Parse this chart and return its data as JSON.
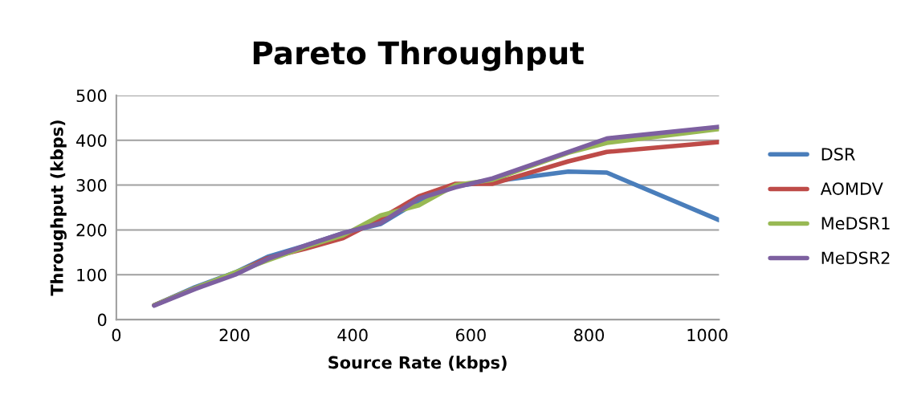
{
  "chart_data": {
    "type": "line",
    "title": "Pareto Throughput",
    "xlabel": "Source Rate (kbps)",
    "ylabel": "Throughput (kbps)",
    "x": [
      64,
      133,
      201,
      256,
      320,
      384,
      447,
      512,
      574,
      637,
      765,
      830,
      1020
    ],
    "series": [
      {
        "name": "DSR",
        "color": "#4a7ebb",
        "values": [
          32,
          72,
          105,
          140,
          165,
          193,
          213,
          265,
          298,
          308,
          330,
          328,
          222
        ]
      },
      {
        "name": "AOMDV",
        "color": "#be4b48",
        "values": [
          32,
          70,
          103,
          137,
          158,
          182,
          225,
          275,
          303,
          303,
          353,
          374,
          396
        ]
      },
      {
        "name": "MeDSR1",
        "color": "#98b954",
        "values": [
          32,
          70,
          105,
          132,
          162,
          188,
          232,
          255,
          300,
          312,
          372,
          394,
          425
        ]
      },
      {
        "name": "MeDSR2",
        "color": "#7d60a0",
        "values": [
          31,
          68,
          100,
          135,
          165,
          193,
          215,
          270,
          295,
          315,
          374,
          404,
          430
        ]
      }
    ],
    "xlim": [
      0,
      1020
    ],
    "xticks": [
      0,
      200,
      400,
      600,
      800,
      1000
    ],
    "ylim": [
      0,
      500
    ],
    "yticks": [
      0,
      100,
      200,
      300,
      400,
      500
    ],
    "grid": "y",
    "legend": "right",
    "marker": "none",
    "line_style": "solid"
  }
}
